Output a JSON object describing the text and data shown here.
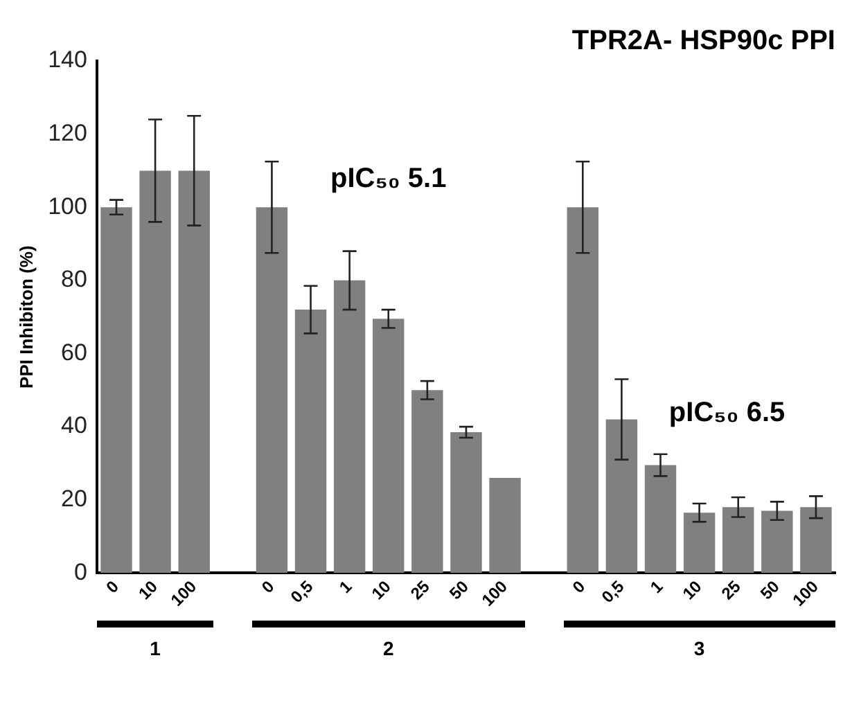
{
  "chart_data": {
    "type": "bar",
    "title": "TPR2A- HSP90c PPI",
    "ylabel": "PPI Inhibiton (%)",
    "categories": [
      "0",
      "10",
      "100",
      null,
      "0",
      "0,5",
      "1",
      "10",
      "25",
      "50",
      "100",
      null,
      "0",
      "0,5",
      "1",
      "10",
      "25",
      "50",
      "100"
    ],
    "values": [
      100,
      110,
      110,
      null,
      100,
      72,
      80,
      69.5,
      50,
      38.5,
      26,
      null,
      100,
      42,
      29.5,
      16.5,
      18,
      17,
      18
    ],
    "errors": [
      2,
      14,
      15,
      null,
      12.5,
      6.5,
      8,
      2.5,
      2.5,
      1.5,
      null,
      null,
      12.5,
      11,
      3,
      2.5,
      2.7,
      2.5,
      3
    ],
    "color": "#808080",
    "ylim": [
      0,
      140
    ],
    "yticks": [
      0,
      20,
      40,
      60,
      80,
      100,
      120,
      140
    ],
    "grid": false,
    "legend": false,
    "annotations": [
      "1",
      "2",
      "3",
      "pIC₅₀ 5.1",
      "pIC₅₀ 6.5"
    ]
  }
}
